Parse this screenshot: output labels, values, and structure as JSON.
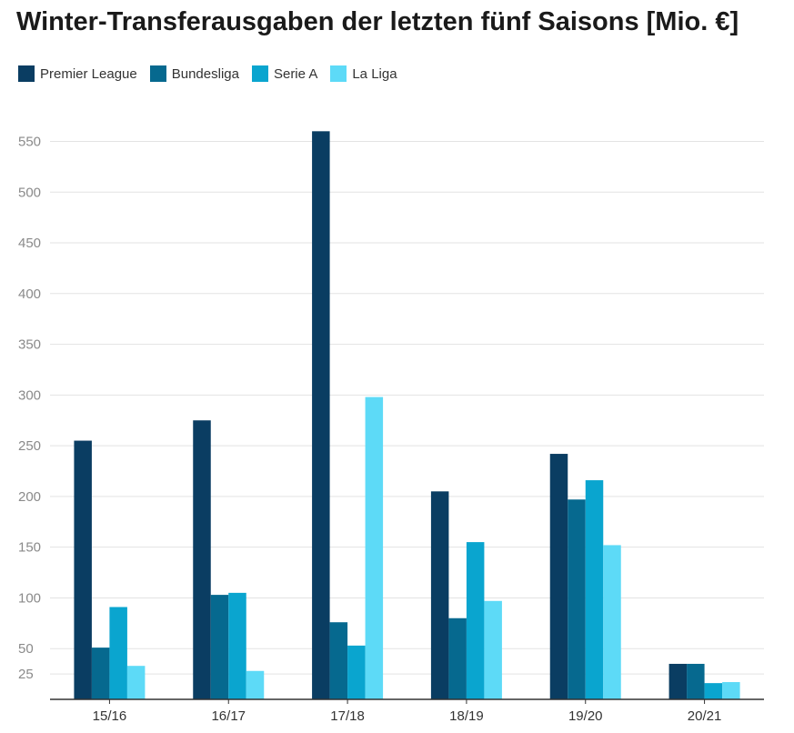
{
  "chart_data": {
    "type": "bar",
    "title": "Winter-Transferausgaben der letzten fünf Saisons [Mio. €]",
    "categories": [
      "15/16",
      "16/17",
      "17/18",
      "18/19",
      "19/20",
      "20/21"
    ],
    "series": [
      {
        "name": "Premier League",
        "color": "#0a3d62",
        "values": [
          255,
          275,
          560,
          205,
          242,
          35
        ]
      },
      {
        "name": "Bundesliga",
        "color": "#06698f",
        "values": [
          51,
          103,
          76,
          80,
          197,
          35
        ]
      },
      {
        "name": "Serie A",
        "color": "#0aa5cf",
        "values": [
          91,
          105,
          53,
          155,
          216,
          16
        ]
      },
      {
        "name": "La Liga",
        "color": "#5ddaf7",
        "values": [
          33,
          28,
          298,
          97,
          152,
          17
        ]
      }
    ],
    "yticks": [
      25,
      50,
      100,
      150,
      200,
      250,
      300,
      350,
      400,
      450,
      500,
      550
    ],
    "ylim": [
      0,
      560
    ],
    "grid": true,
    "legend_position": "top-left",
    "xlabel": "",
    "ylabel": ""
  }
}
